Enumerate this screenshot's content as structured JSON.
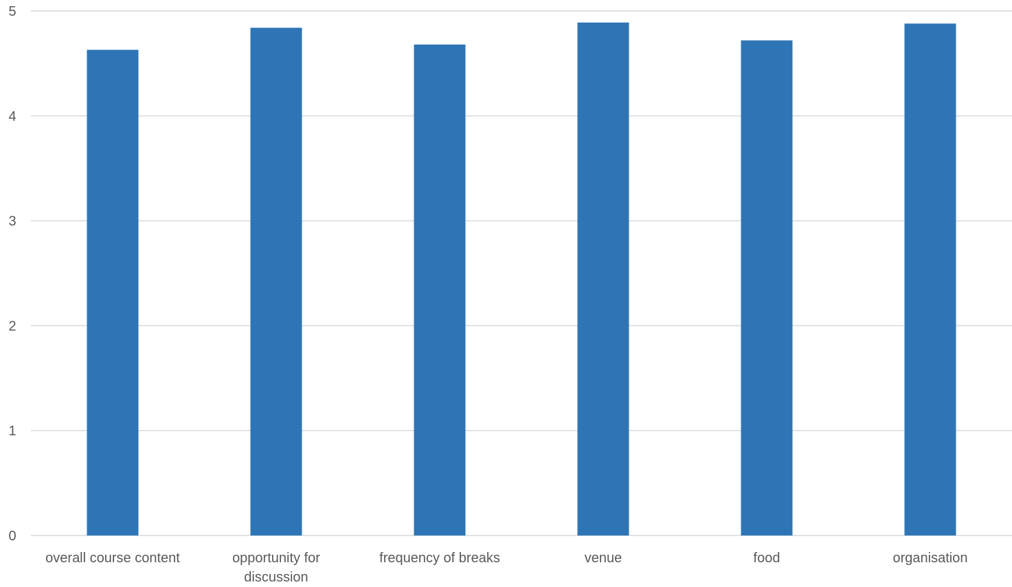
{
  "chart_data": {
    "type": "bar",
    "categories": [
      [
        "overall course content"
      ],
      [
        "opportunity for",
        "discussion"
      ],
      [
        "frequency of breaks"
      ],
      [
        "venue"
      ],
      [
        "food"
      ],
      [
        "organisation"
      ]
    ],
    "values": [
      4.63,
      4.84,
      4.68,
      4.89,
      4.72,
      4.88
    ],
    "ylim": [
      0,
      5
    ],
    "yticks": [
      "0",
      "1",
      "2",
      "3",
      "4",
      "5"
    ],
    "grid": true,
    "legend": "none",
    "bar_color": "#2E75B6",
    "grid_color": "#D9D9D9",
    "label_color": "#595959"
  }
}
